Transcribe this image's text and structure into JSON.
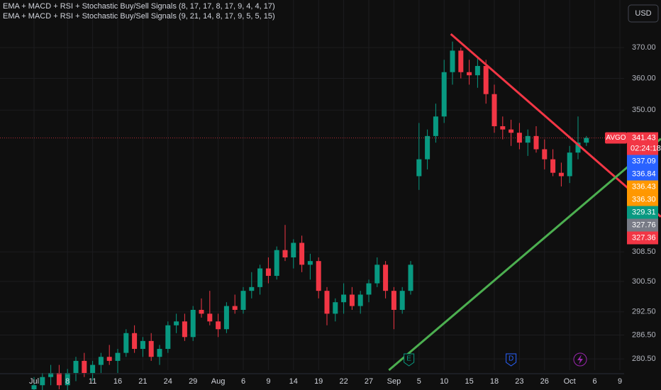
{
  "chart_data": {
    "type": "candlestick",
    "indicators": [
      "EMA + MACD + RSI + Stochastic Buy/Sell Signals (8, 17, 17, 8, 17, 9, 4, 4, 17)",
      "EMA + MACD + RSI + Stochastic Buy/Sell Signals (9, 21, 14, 8, 17, 9, 5, 5, 15)"
    ],
    "currency": "USD",
    "categories": [
      "Jul",
      null,
      null,
      null,
      "8",
      null,
      null,
      "11",
      null,
      null,
      "16",
      null,
      null,
      "21",
      null,
      null,
      "24",
      null,
      null,
      "29",
      null,
      null,
      "Aug",
      null,
      null,
      "6",
      null,
      null,
      "9",
      null,
      null,
      "14",
      null,
      null,
      "19",
      null,
      null,
      "22",
      null,
      null,
      "27",
      null,
      null,
      "Sep",
      null,
      null,
      "5",
      null,
      null,
      "10",
      null,
      null,
      "15",
      null,
      null,
      "18",
      null,
      null,
      "23",
      null,
      null,
      "26",
      null,
      null,
      "Oct",
      null,
      null,
      "6",
      null,
      null,
      "9"
    ],
    "open": [
      273,
      274,
      276,
      277,
      274,
      277,
      280,
      277,
      279,
      281,
      280,
      282,
      287,
      283,
      285,
      281,
      283,
      289,
      290,
      286,
      293,
      292,
      290,
      288,
      294,
      293,
      298,
      299,
      304,
      302,
      309,
      307,
      311,
      305,
      306,
      298,
      292,
      295,
      297,
      294,
      297,
      300,
      305,
      298,
      293,
      298,
      330,
      335,
      342,
      348,
      362,
      369,
      362,
      361,
      364,
      355,
      345,
      344,
      343,
      340,
      342,
      338,
      335,
      331,
      330,
      337,
      340,
      null,
      null,
      null,
      null
    ],
    "high": [
      276,
      277,
      279,
      279,
      278,
      281,
      282,
      280,
      282,
      284,
      283,
      288,
      289,
      286,
      287,
      284,
      290,
      292,
      292,
      294,
      296,
      298,
      292,
      295,
      297,
      299,
      303,
      305,
      307,
      310,
      316,
      312,
      313,
      308,
      307,
      299,
      296,
      300,
      299,
      298,
      301,
      307,
      306,
      299,
      299,
      306,
      346,
      344,
      352,
      366,
      372,
      370,
      366,
      367,
      366,
      358,
      348,
      347,
      346,
      344,
      345,
      341,
      338,
      334,
      339,
      348,
      342,
      null,
      null,
      null,
      null
    ],
    "low": [
      270,
      271,
      274,
      273,
      272,
      275,
      276,
      275,
      277,
      279,
      277,
      281,
      282,
      281,
      280,
      279,
      282,
      287,
      285,
      285,
      291,
      289,
      286,
      287,
      292,
      292,
      296,
      297,
      300,
      301,
      306,
      304,
      303,
      301,
      296,
      289,
      290,
      292,
      293,
      292,
      295,
      299,
      296,
      288,
      292,
      297,
      326,
      332,
      340,
      346,
      358,
      360,
      358,
      357,
      352,
      343,
      341,
      339,
      338,
      336,
      337,
      332,
      330,
      327,
      328,
      335,
      339,
      null,
      null,
      null,
      null
    ],
    "close": [
      274,
      276,
      277,
      274,
      277,
      280,
      277,
      279,
      281,
      280,
      282,
      287,
      283,
      285,
      281,
      283,
      289,
      290,
      286,
      293,
      292,
      290,
      288,
      294,
      293,
      298,
      299,
      304,
      302,
      309,
      307,
      311,
      305,
      306,
      298,
      292,
      295,
      297,
      294,
      297,
      300,
      305,
      298,
      293,
      298,
      305,
      335,
      342,
      348,
      362,
      369,
      362,
      361,
      364,
      355,
      345,
      344,
      343,
      340,
      342,
      338,
      335,
      331,
      330,
      337,
      340,
      341.43,
      null,
      null,
      null,
      null
    ],
    "up_color": "#089981",
    "down_color": "#f23645",
    "ylim": [
      277.7,
      386
    ],
    "log_scale": true,
    "grid": true,
    "yticks": [
      {
        "value": 370,
        "label": "370.00"
      },
      {
        "value": 360,
        "label": "360.00"
      },
      {
        "value": 350,
        "label": "350.00"
      },
      {
        "value": 308.5,
        "label": "308.50"
      },
      {
        "value": 300.5,
        "label": "300.50"
      },
      {
        "value": 292.5,
        "label": "292.50"
      },
      {
        "value": 286.5,
        "label": "286.50"
      },
      {
        "value": 280.5,
        "label": "280.50"
      }
    ],
    "last_price": {
      "symbol": "AVGO",
      "value": 341.43,
      "label": "341.43",
      "countdown": "02:24:18",
      "color": "#f23645"
    },
    "price_labels": [
      {
        "value": 337.09,
        "label": "337.09",
        "color": "#2962ff"
      },
      {
        "value": 336.84,
        "label": "336.84",
        "color": "#2962ff"
      },
      {
        "value": 336.43,
        "label": "336.43",
        "color": "#ff9800"
      },
      {
        "value": 336.3,
        "label": "336.30",
        "color": "#ff9800"
      },
      {
        "value": 329.31,
        "label": "329.31",
        "color": "#089981"
      },
      {
        "value": 327.76,
        "label": "327.76",
        "color": "#787b86"
      },
      {
        "value": 327.36,
        "label": "327.36",
        "color": "#f23645"
      }
    ],
    "trendlines": [
      {
        "color": "#f23645",
        "points": [
          [
            49.8,
            374.5
          ],
          [
            74.9,
            318.3
          ]
        ]
      },
      {
        "color": "#4caf50",
        "points": [
          [
            42.4,
            277.7
          ],
          [
            74.9,
            341.2
          ]
        ]
      }
    ],
    "events": [
      {
        "label": "E",
        "index": 44.8,
        "color": "#089981"
      },
      {
        "label": "D",
        "index": 57,
        "color": "#2962ff"
      }
    ]
  }
}
